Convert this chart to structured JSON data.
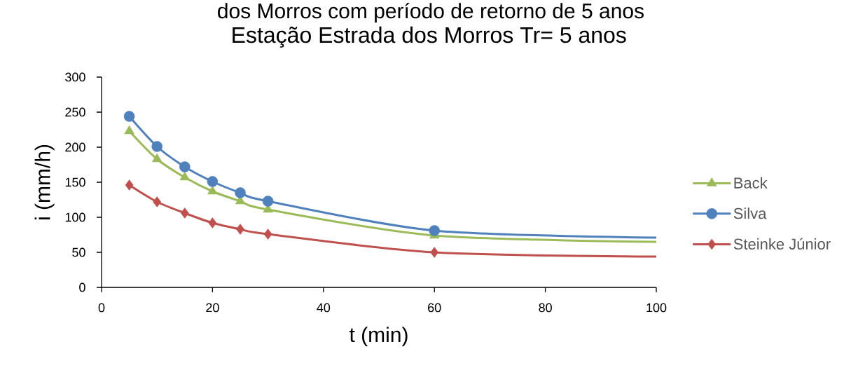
{
  "chart_data": {
    "type": "line",
    "title": "Estação Estrada dos Morros  Tr= 5 anos",
    "xlabel": "t (min)",
    "ylabel": "i (mm/h)",
    "annotations": [
      "dos Morros com período de retorno de 5 anos"
    ],
    "x": [
      5,
      10,
      15,
      20,
      25,
      30,
      60,
      100
    ],
    "series": [
      {
        "name": "Back",
        "color": "#9bbb59",
        "marker": "triangle",
        "values": [
          223,
          183,
          157,
          137,
          123,
          111,
          74,
          65
        ]
      },
      {
        "name": "Silva",
        "color": "#4f81bd",
        "marker": "circle",
        "values": [
          244,
          201,
          172,
          151,
          135,
          123,
          81,
          71
        ]
      },
      {
        "name": "Steinke Júnior",
        "color": "#c0504d",
        "marker": "diamond",
        "values": [
          146,
          122,
          106,
          92,
          83,
          76,
          50,
          44
        ]
      }
    ],
    "xlim": [
      0,
      100
    ],
    "ylim": [
      0,
      300
    ],
    "xticks": [
      0,
      20,
      40,
      60,
      80,
      100
    ],
    "yticks": [
      0,
      50,
      100,
      150,
      200,
      250,
      300
    ],
    "legend": "right",
    "line_style": "solid"
  }
}
